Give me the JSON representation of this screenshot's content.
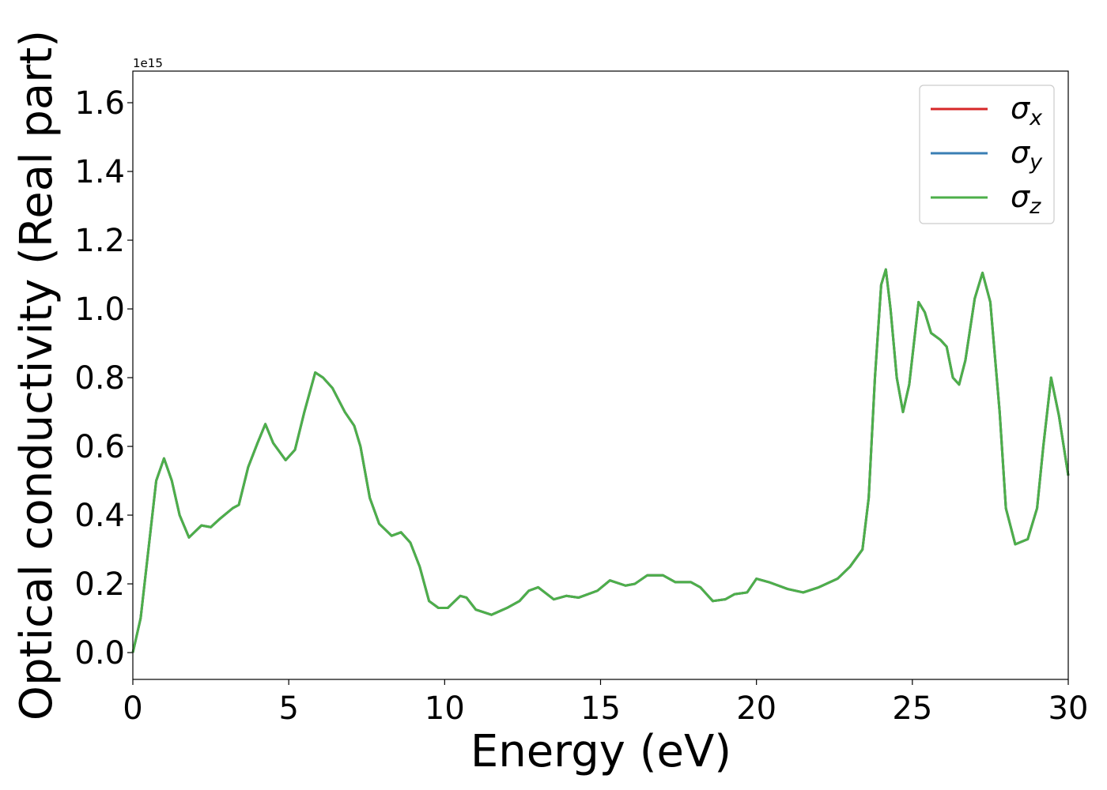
{
  "chart_data": {
    "type": "line",
    "xlabel": "Energy (eV)",
    "ylabel": "Optical conductivity (Real part)",
    "y_offset_label": "1e15",
    "xlim": [
      0,
      30
    ],
    "ylim": [
      -0.078,
      1.692
    ],
    "xticks": [
      0,
      5,
      10,
      15,
      20,
      25,
      30
    ],
    "yticks": [
      {
        "value": 0,
        "label": "0.0"
      },
      0.2,
      0.4,
      0.6,
      0.8,
      {
        "value": 1,
        "label": "1.0"
      },
      1.2,
      1.4,
      1.6
    ],
    "legend_position": "upper right",
    "x": [
      0,
      0.25,
      0.5,
      0.75,
      1.0,
      1.25,
      1.5,
      1.8,
      2.2,
      2.5,
      2.8,
      3.2,
      3.4,
      3.7,
      4.0,
      4.25,
      4.5,
      4.9,
      5.2,
      5.5,
      5.85,
      6.1,
      6.4,
      6.8,
      7.1,
      7.3,
      7.6,
      7.9,
      8.3,
      8.6,
      8.9,
      9.2,
      9.5,
      9.8,
      10.1,
      10.5,
      10.7,
      11.0,
      11.5,
      12.0,
      12.4,
      12.7,
      13.0,
      13.5,
      13.9,
      14.3,
      14.9,
      15.3,
      15.8,
      16.1,
      16.5,
      17.0,
      17.4,
      17.9,
      18.2,
      18.6,
      19.0,
      19.3,
      19.7,
      20.0,
      20.4,
      21.0,
      21.5,
      22.0,
      22.6,
      23.0,
      23.4,
      23.6,
      23.8,
      24.0,
      24.15,
      24.3,
      24.5,
      24.7,
      24.9,
      25.2,
      25.4,
      25.6,
      25.9,
      26.1,
      26.3,
      26.5,
      26.7,
      27.0,
      27.25,
      27.5,
      27.8,
      28.0,
      28.3,
      28.7,
      29.0,
      29.2,
      29.45,
      29.7,
      30.0
    ],
    "series": [
      {
        "name": "σx",
        "color": "#d62728",
        "values": [
          0.0,
          0.1,
          0.3,
          0.5,
          0.565,
          0.5,
          0.4,
          0.335,
          0.37,
          0.365,
          0.39,
          0.42,
          0.43,
          0.54,
          0.61,
          0.665,
          0.61,
          0.56,
          0.59,
          0.7,
          0.815,
          0.8,
          0.77,
          0.7,
          0.66,
          0.6,
          0.45,
          0.375,
          0.34,
          0.35,
          0.32,
          0.25,
          0.15,
          0.13,
          0.13,
          0.165,
          0.16,
          0.125,
          0.11,
          0.13,
          0.15,
          0.18,
          0.19,
          0.155,
          0.165,
          0.16,
          0.18,
          0.21,
          0.195,
          0.2,
          0.225,
          0.225,
          0.205,
          0.205,
          0.19,
          0.15,
          0.155,
          0.17,
          0.175,
          0.215,
          0.205,
          0.185,
          0.175,
          0.19,
          0.215,
          0.25,
          0.3,
          0.45,
          0.8,
          1.07,
          1.115,
          1.0,
          0.8,
          0.7,
          0.78,
          1.02,
          0.99,
          0.93,
          0.91,
          0.89,
          0.8,
          0.78,
          0.85,
          1.03,
          1.105,
          1.02,
          0.7,
          0.42,
          0.315,
          0.33,
          0.42,
          0.6,
          0.8,
          0.69,
          0.515
        ]
      },
      {
        "name": "σy",
        "color": "#3a7fb4",
        "values": [
          0.0,
          0.1,
          0.3,
          0.5,
          0.565,
          0.5,
          0.4,
          0.335,
          0.37,
          0.365,
          0.39,
          0.42,
          0.43,
          0.54,
          0.61,
          0.665,
          0.61,
          0.56,
          0.59,
          0.7,
          0.815,
          0.8,
          0.77,
          0.7,
          0.66,
          0.6,
          0.45,
          0.375,
          0.34,
          0.35,
          0.32,
          0.25,
          0.15,
          0.13,
          0.13,
          0.165,
          0.16,
          0.125,
          0.11,
          0.13,
          0.15,
          0.18,
          0.19,
          0.155,
          0.165,
          0.16,
          0.18,
          0.21,
          0.195,
          0.2,
          0.225,
          0.225,
          0.205,
          0.205,
          0.19,
          0.15,
          0.155,
          0.17,
          0.175,
          0.215,
          0.205,
          0.185,
          0.175,
          0.19,
          0.215,
          0.25,
          0.3,
          0.45,
          0.8,
          1.07,
          1.115,
          1.0,
          0.8,
          0.7,
          0.78,
          1.02,
          0.99,
          0.93,
          0.91,
          0.89,
          0.8,
          0.78,
          0.85,
          1.03,
          1.105,
          1.02,
          0.7,
          0.42,
          0.315,
          0.33,
          0.42,
          0.6,
          0.8,
          0.69,
          0.515
        ]
      },
      {
        "name": "σz",
        "color": "#4daf4a",
        "values": [
          0.0,
          0.1,
          0.3,
          0.5,
          0.565,
          0.5,
          0.4,
          0.335,
          0.37,
          0.365,
          0.39,
          0.42,
          0.43,
          0.54,
          0.61,
          0.665,
          0.61,
          0.56,
          0.59,
          0.7,
          0.815,
          0.8,
          0.77,
          0.7,
          0.66,
          0.6,
          0.45,
          0.375,
          0.34,
          0.35,
          0.32,
          0.25,
          0.15,
          0.13,
          0.13,
          0.165,
          0.16,
          0.125,
          0.11,
          0.13,
          0.15,
          0.18,
          0.19,
          0.155,
          0.165,
          0.16,
          0.18,
          0.21,
          0.195,
          0.2,
          0.225,
          0.225,
          0.205,
          0.205,
          0.19,
          0.15,
          0.155,
          0.17,
          0.175,
          0.215,
          0.205,
          0.185,
          0.175,
          0.19,
          0.215,
          0.25,
          0.3,
          0.45,
          0.8,
          1.07,
          1.115,
          1.0,
          0.8,
          0.7,
          0.78,
          1.02,
          0.99,
          0.93,
          0.91,
          0.89,
          0.8,
          0.78,
          0.85,
          1.03,
          1.105,
          1.02,
          0.7,
          0.42,
          0.315,
          0.33,
          0.42,
          0.6,
          0.8,
          0.69,
          0.515
        ]
      }
    ]
  }
}
